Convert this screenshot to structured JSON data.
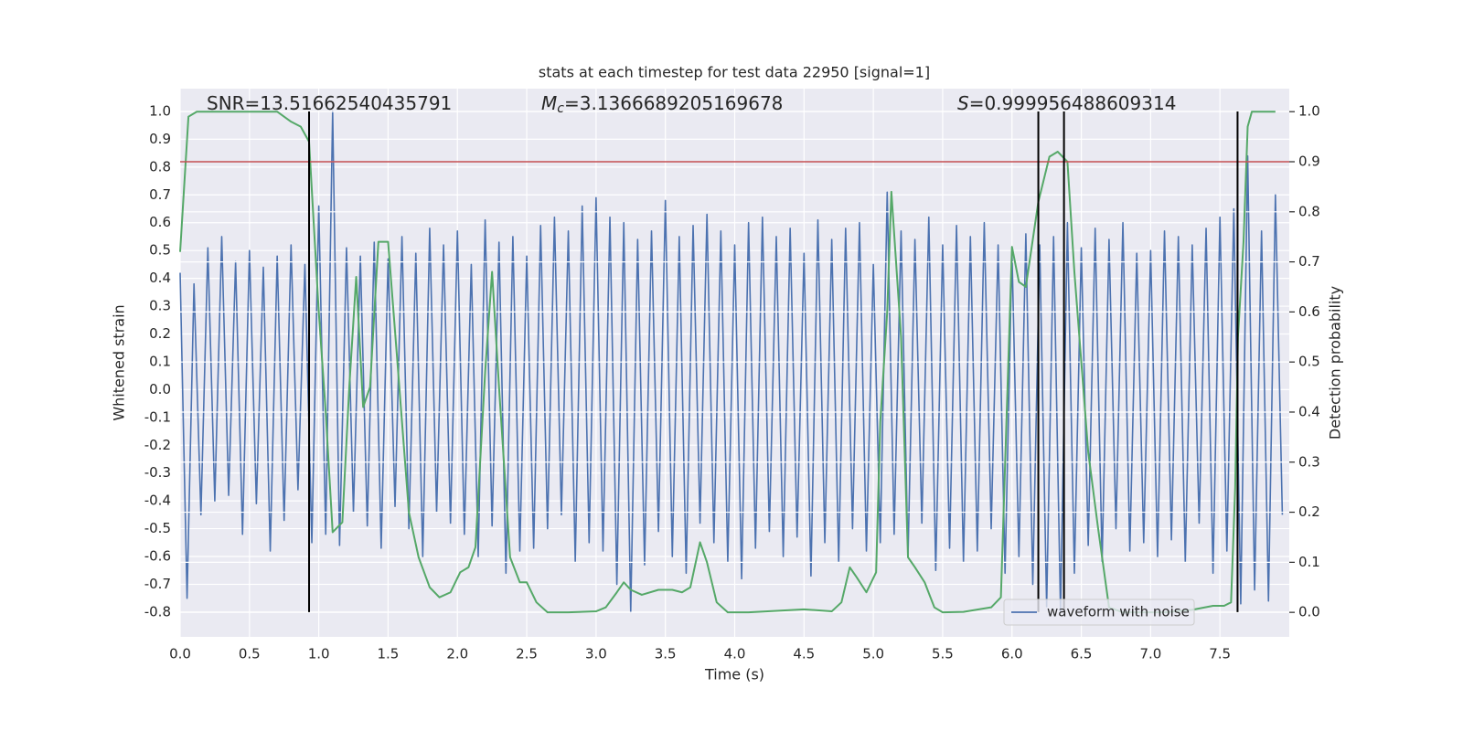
{
  "chart_data": {
    "type": "line",
    "title": "stats at each timestep for test data 22950 [signal=1]",
    "xlabel": "Time (s)",
    "ylabel": "Whitened strain",
    "y2label": "Detection probability",
    "xlim": [
      0,
      8
    ],
    "ylim": [
      -0.889,
      1.082
    ],
    "y2lim": [
      -0.049,
      1.046
    ],
    "xticks": [
      {
        "value": 0,
        "label": "0.0"
      },
      0.5,
      {
        "value": 1,
        "label": "1.0"
      },
      1.5,
      {
        "value": 2,
        "label": "2.0"
      },
      2.5,
      {
        "value": 3,
        "label": "3.0"
      },
      3.5,
      {
        "value": 4,
        "label": "4.0"
      },
      4.5,
      {
        "value": 5,
        "label": "5.0"
      },
      5.5,
      {
        "value": 6,
        "label": "6.0"
      },
      6.5,
      {
        "value": 7,
        "label": "7.0"
      },
      7.5
    ],
    "yticks": [
      -0.8,
      -0.7,
      -0.6,
      -0.5,
      -0.4,
      -0.3,
      -0.2,
      -0.1,
      {
        "value": 0,
        "label": "0.0"
      },
      0.1,
      0.2,
      0.3,
      0.4,
      0.5,
      0.6,
      0.7,
      0.8,
      0.9,
      {
        "value": 1,
        "label": "1.0"
      }
    ],
    "y2ticks": [
      {
        "value": 0,
        "label": "0.0"
      },
      0.1,
      0.2,
      0.3,
      0.4,
      0.5,
      0.6,
      0.7,
      0.8,
      0.9,
      {
        "value": 1,
        "label": "1.0"
      }
    ],
    "grid": true,
    "legend": "lower right",
    "series": [
      {
        "name": "waveform with noise",
        "color": "#4c72b0",
        "x": [
          0,
          0.05,
          0.1,
          0.15,
          0.2,
          0.25,
          0.3,
          0.35,
          0.4,
          0.45,
          0.5,
          0.55,
          0.6,
          0.65,
          0.7,
          0.75,
          0.8,
          0.85,
          0.9,
          0.95,
          1,
          1.05,
          1.1,
          1.15,
          1.2,
          1.25,
          1.3,
          1.35,
          1.4,
          1.45,
          1.5,
          1.55,
          1.6,
          1.65,
          1.7,
          1.75,
          1.8,
          1.85,
          1.9,
          1.95,
          2,
          2.05,
          2.1,
          2.15,
          2.2,
          2.25,
          2.3,
          2.35,
          2.4,
          2.45,
          2.5,
          2.55,
          2.6,
          2.65,
          2.7,
          2.75,
          2.8,
          2.85,
          2.9,
          2.95,
          3,
          3.05,
          3.1,
          3.15,
          3.2,
          3.25,
          3.3,
          3.35,
          3.4,
          3.45,
          3.5,
          3.55,
          3.6,
          3.65,
          3.7,
          3.75,
          3.8,
          3.85,
          3.9,
          3.95,
          4,
          4.05,
          4.1,
          4.15,
          4.2,
          4.25,
          4.3,
          4.35,
          4.4,
          4.45,
          4.5,
          4.55,
          4.6,
          4.65,
          4.7,
          4.75,
          4.8,
          4.85,
          4.9,
          4.95,
          5,
          5.05,
          5.1,
          5.15,
          5.2,
          5.25,
          5.3,
          5.35,
          5.4,
          5.45,
          5.5,
          5.55,
          5.6,
          5.65,
          5.7,
          5.75,
          5.8,
          5.85,
          5.9,
          5.95,
          6,
          6.05,
          6.1,
          6.15,
          6.2,
          6.25,
          6.3,
          6.35,
          6.4,
          6.45,
          6.5,
          6.55,
          6.6,
          6.65,
          6.7,
          6.75,
          6.8,
          6.85,
          6.9,
          6.95,
          7,
          7.05,
          7.1,
          7.15,
          7.2,
          7.25,
          7.3,
          7.35,
          7.4,
          7.45,
          7.5,
          7.55,
          7.6,
          7.65,
          7.7,
          7.75,
          7.8,
          7.85,
          7.9,
          7.95
        ],
        "values": [
          0.42,
          -0.75,
          0.38,
          -0.45,
          0.51,
          -0.4,
          0.55,
          -0.38,
          0.46,
          -0.52,
          0.5,
          -0.41,
          0.44,
          -0.58,
          0.48,
          -0.47,
          0.52,
          -0.36,
          0.45,
          -0.55,
          0.66,
          -0.52,
          1.0,
          -0.56,
          0.51,
          -0.44,
          0.48,
          -0.49,
          0.53,
          -0.57,
          0.47,
          -0.42,
          0.55,
          -0.5,
          0.49,
          -0.6,
          0.58,
          -0.44,
          0.52,
          -0.48,
          0.57,
          -0.52,
          0.45,
          -0.6,
          0.61,
          -0.49,
          0.53,
          -0.66,
          0.55,
          -0.58,
          0.48,
          -0.57,
          0.59,
          -0.5,
          0.62,
          -0.45,
          0.57,
          -0.62,
          0.66,
          -0.55,
          0.69,
          -0.58,
          0.62,
          -0.7,
          0.6,
          -0.8,
          0.54,
          -0.63,
          0.57,
          -0.51,
          0.68,
          -0.6,
          0.55,
          -0.66,
          0.59,
          -0.48,
          0.63,
          -0.55,
          0.57,
          -0.62,
          0.52,
          -0.68,
          0.6,
          -0.57,
          0.62,
          -0.51,
          0.55,
          -0.6,
          0.58,
          -0.53,
          0.49,
          -0.67,
          0.61,
          -0.55,
          0.54,
          -0.62,
          0.58,
          -0.5,
          0.6,
          -0.58,
          0.45,
          -0.55,
          0.71,
          -0.52,
          0.57,
          -0.6,
          0.54,
          -0.48,
          0.62,
          -0.65,
          0.52,
          -0.57,
          0.59,
          -0.62,
          0.55,
          -0.58,
          0.6,
          -0.5,
          0.52,
          -0.66,
          0.49,
          -0.6,
          0.56,
          -0.7,
          0.52,
          -0.78,
          0.55,
          -0.8,
          0.6,
          -0.66,
          0.51,
          -0.56,
          0.58,
          -0.62,
          0.54,
          -0.5,
          0.6,
          -0.58,
          0.49,
          -0.55,
          0.5,
          -0.6,
          0.57,
          -0.54,
          0.55,
          -0.62,
          0.52,
          -0.48,
          0.58,
          -0.66,
          0.62,
          -0.58,
          0.65,
          -0.77,
          0.84,
          -0.72,
          0.57,
          -0.76,
          0.7,
          -0.45
        ]
      },
      {
        "color": "#55a868",
        "axis": "y2",
        "x": [
          0,
          0.06,
          0.12,
          0.3,
          0.5,
          0.7,
          0.8,
          0.87,
          0.93,
          1.0,
          1.05,
          1.1,
          1.17,
          1.22,
          1.27,
          1.32,
          1.37,
          1.43,
          1.5,
          1.57,
          1.65,
          1.72,
          1.8,
          1.87,
          1.95,
          2.02,
          2.08,
          2.13,
          2.2,
          2.25,
          2.3,
          2.38,
          2.45,
          2.5,
          2.57,
          2.65,
          2.8,
          3.0,
          3.07,
          3.15,
          3.2,
          3.25,
          3.33,
          3.45,
          3.55,
          3.62,
          3.68,
          3.75,
          3.8,
          3.87,
          3.95,
          4.1,
          4.3,
          4.5,
          4.7,
          4.77,
          4.83,
          4.88,
          4.95,
          5.02,
          5.05,
          5.1,
          5.13,
          5.2,
          5.25,
          5.3,
          5.37,
          5.44,
          5.5,
          5.65,
          5.85,
          5.92,
          6.0,
          6.05,
          6.1,
          6.19,
          6.27,
          6.33,
          6.4,
          6.45,
          6.55,
          6.62,
          6.7,
          6.8,
          7.1,
          7.3,
          7.45,
          7.53,
          7.58,
          7.61,
          7.63,
          7.67,
          7.7,
          7.73,
          7.9
        ],
        "values": [
          0.72,
          0.99,
          1.0,
          1.0,
          1.0,
          1.0,
          0.98,
          0.97,
          0.94,
          0.6,
          0.4,
          0.16,
          0.18,
          0.45,
          0.67,
          0.41,
          0.45,
          0.74,
          0.74,
          0.49,
          0.2,
          0.11,
          0.05,
          0.03,
          0.04,
          0.08,
          0.09,
          0.13,
          0.48,
          0.68,
          0.45,
          0.11,
          0.06,
          0.06,
          0.02,
          0.0,
          0.0,
          0.002,
          0.01,
          0.04,
          0.06,
          0.045,
          0.035,
          0.045,
          0.045,
          0.04,
          0.05,
          0.14,
          0.1,
          0.02,
          0.0,
          0.0,
          0.003,
          0.006,
          0.002,
          0.02,
          0.09,
          0.07,
          0.04,
          0.08,
          0.38,
          0.6,
          0.84,
          0.55,
          0.11,
          0.09,
          0.06,
          0.01,
          0.0,
          0.001,
          0.01,
          0.03,
          0.73,
          0.66,
          0.65,
          0.82,
          0.91,
          0.92,
          0.9,
          0.68,
          0.32,
          0.17,
          0.01,
          0.0,
          0.0,
          0.005,
          0.013,
          0.013,
          0.02,
          0.25,
          0.55,
          0.74,
          0.97,
          1.0,
          1.0
        ]
      }
    ],
    "hline": {
      "value": 0.9,
      "axis": "y2",
      "color": "#c44e52"
    },
    "vlines": {
      "x": [
        0.93,
        6.19,
        6.375,
        7.627
      ],
      "ymin": -0.8,
      "ymax": 1.0,
      "color": "#000000"
    },
    "annotations": [
      {
        "text": "SNR=13.51662540435791"
      },
      {
        "italic": "M",
        "sub": "c",
        "text": "=3.1366689205169678"
      },
      {
        "italic": "S",
        "text": "=0.999956488609314"
      }
    ],
    "background": "#eaeaf2"
  }
}
